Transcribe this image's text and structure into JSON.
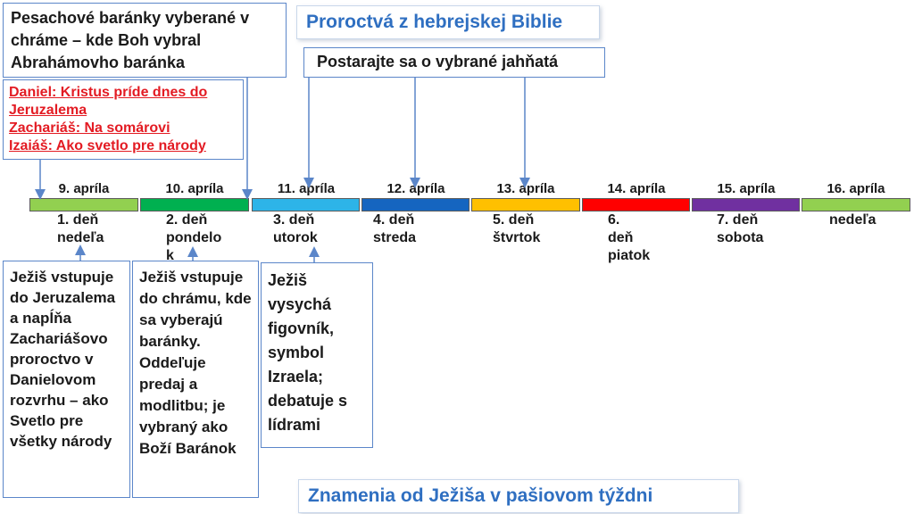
{
  "top_left_box": "Pesachové baránky vyberané v chráme – kde Boh vybral Abrahámovho baránka",
  "title": "Proroctvá z hebrejskej Biblie",
  "subtitle_box": "Postarajte sa o vybrané jahňatá",
  "prophecies": [
    "Daniel: Kristus príde dnes do Jeruzalema",
    "Zachariáš: Na somárovi",
    "Izaiáš: Ako svetlo pre národy"
  ],
  "days": [
    {
      "date": "9. apríla",
      "label": "1. deň\nnedeľa",
      "color": "#92d050"
    },
    {
      "date": "10. apríla",
      "label": "2. deň\npondelo\nk",
      "color": "#00b050"
    },
    {
      "date": "11. apríla",
      "label": "3. deň\nutorok",
      "color": "#2db4e8"
    },
    {
      "date": "12. apríla",
      "label": "4. deň\nstreda",
      "color": "#1565c0"
    },
    {
      "date": "13. apríla",
      "label": "5. deň\nštvrtok",
      "color": "#ffc000"
    },
    {
      "date": "14. apríla",
      "label": "6.\ndeň\npiatok",
      "color": "#ff0000"
    },
    {
      "date": "15. apríla",
      "label": "7. deň\nsobota",
      "color": "#7030a0"
    },
    {
      "date": "16. apríla",
      "label": "nedeľa",
      "color": "#92d050"
    }
  ],
  "events": [
    "Ježiš vstupuje do Jeruzalema a napĺňa Zachariášovo proroctvo v Danielovom rozvrhu – ako Svetlo pre všetky národy",
    "Ježiš vstupuje do chrámu, kde sa vyberajú baránky. Oddeľuje predaj a modlitbu; je vybraný ako Boží Baránok",
    "Ježiš vysychá figovník, symbol Izraela; debatuje s lídrami"
  ],
  "footer_title": "Znamenia od Ježiša v pašiovom týždni"
}
